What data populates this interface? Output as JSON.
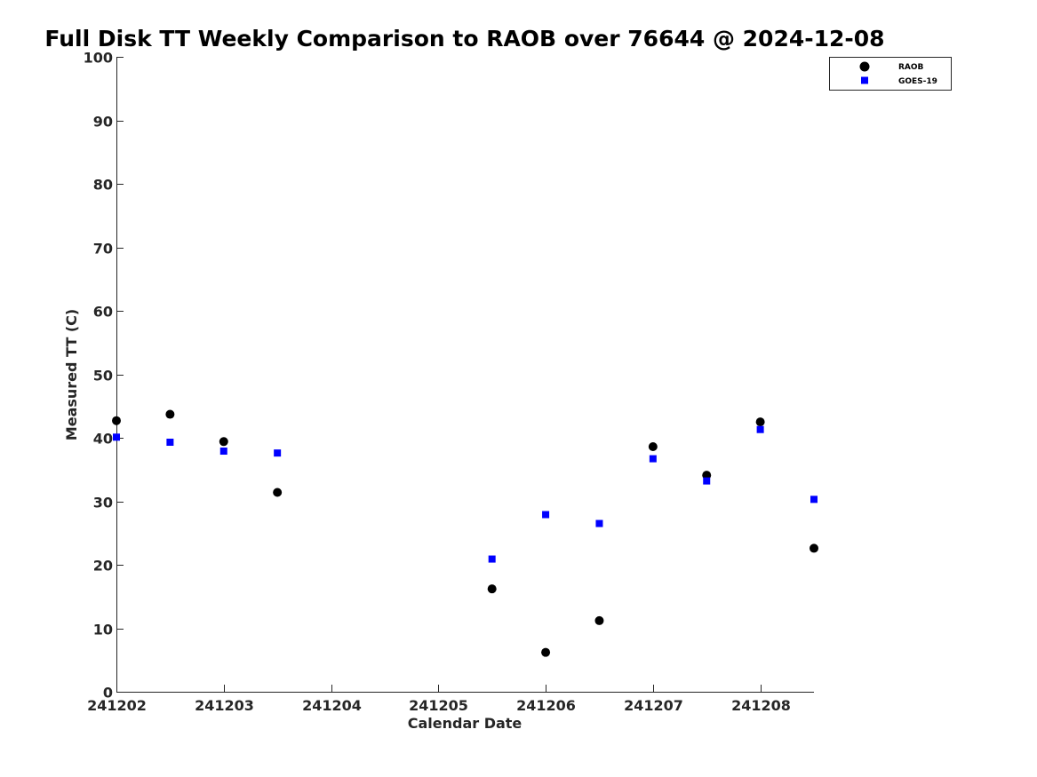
{
  "chart_data": {
    "type": "scatter",
    "title": "Full Disk TT Weekly Comparison to RAOB over 76644 @ 2024-12-08",
    "xlabel": "Calendar Date",
    "ylabel": "Measured TT (C)",
    "xlim": [
      0,
      6.5
    ],
    "ylim": [
      0,
      100
    ],
    "x_ticks": [
      {
        "value": 0,
        "label": "241202"
      },
      {
        "value": 1,
        "label": "241203"
      },
      {
        "value": 2,
        "label": "241204"
      },
      {
        "value": 3,
        "label": "241205"
      },
      {
        "value": 4,
        "label": "241206"
      },
      {
        "value": 5,
        "label": "241207"
      },
      {
        "value": 6,
        "label": "241208"
      }
    ],
    "y_ticks": [
      0,
      10,
      20,
      30,
      40,
      50,
      60,
      70,
      80,
      90,
      100
    ],
    "grid": false,
    "legend_position": "top-right",
    "series": [
      {
        "name": "RAOB",
        "marker": "circle",
        "color": "#000000",
        "points": [
          {
            "x": 0.0,
            "y": 42.7
          },
          {
            "x": 0.5,
            "y": 43.7
          },
          {
            "x": 1.0,
            "y": 39.4
          },
          {
            "x": 1.5,
            "y": 31.4
          },
          {
            "x": 3.5,
            "y": 16.2
          },
          {
            "x": 4.0,
            "y": 6.2
          },
          {
            "x": 4.5,
            "y": 11.2
          },
          {
            "x": 5.0,
            "y": 38.6
          },
          {
            "x": 5.5,
            "y": 34.1
          },
          {
            "x": 6.0,
            "y": 42.5
          },
          {
            "x": 6.5,
            "y": 22.6
          }
        ]
      },
      {
        "name": "GOES-19",
        "marker": "square",
        "color": "#0000ff",
        "points": [
          {
            "x": 0.0,
            "y": 40.1
          },
          {
            "x": 0.5,
            "y": 39.3
          },
          {
            "x": 1.0,
            "y": 37.9
          },
          {
            "x": 1.5,
            "y": 37.6
          },
          {
            "x": 3.5,
            "y": 20.9
          },
          {
            "x": 4.0,
            "y": 27.9
          },
          {
            "x": 4.5,
            "y": 26.5
          },
          {
            "x": 5.0,
            "y": 36.7
          },
          {
            "x": 5.5,
            "y": 33.2
          },
          {
            "x": 6.0,
            "y": 41.3
          },
          {
            "x": 6.5,
            "y": 30.3
          }
        ]
      }
    ]
  }
}
